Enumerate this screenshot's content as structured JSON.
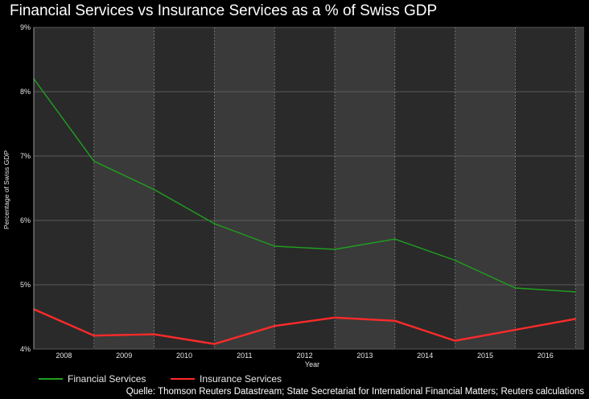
{
  "title": "Financial Services vs Insurance Services as a % of Swiss GDP",
  "source": "Quelle: Thomson Reuters Datastream; State Secretariat for International Financial Matters; Reuters calculations",
  "colors": {
    "background": "#000000",
    "plot_background": "#2a2a2a",
    "band_background": "#3a3a3a",
    "financial": "#1fa01f",
    "insurance": "#ff2a2a"
  },
  "chart_data": {
    "type": "line",
    "xlabel": "Year",
    "ylabel": "Percentage of Swiss GDP",
    "categories": [
      "2008",
      "2009",
      "2010",
      "2011",
      "2012",
      "2013",
      "2014",
      "2015",
      "2016"
    ],
    "y_ticks": [
      "9%",
      "8%",
      "7%",
      "6%",
      "5%",
      "4%"
    ],
    "ylim": [
      4,
      9
    ],
    "grid": true,
    "legend_position": "bottom-left",
    "series": [
      {
        "name": "Financial Services",
        "color": "#1fa01f",
        "points": [
          {
            "x": 2007.5,
            "y": 8.2
          },
          {
            "x": 2008.5,
            "y": 6.92
          },
          {
            "x": 2009.5,
            "y": 6.48
          },
          {
            "x": 2010.5,
            "y": 5.95
          },
          {
            "x": 2011.5,
            "y": 5.6
          },
          {
            "x": 2012.5,
            "y": 5.55
          },
          {
            "x": 2013.5,
            "y": 5.71
          },
          {
            "x": 2014.5,
            "y": 5.38
          },
          {
            "x": 2015.5,
            "y": 4.95
          },
          {
            "x": 2016.5,
            "y": 4.89
          }
        ]
      },
      {
        "name": "Insurance Services",
        "color": "#ff2a2a",
        "points": [
          {
            "x": 2007.5,
            "y": 4.62
          },
          {
            "x": 2008.5,
            "y": 4.21
          },
          {
            "x": 2009.5,
            "y": 4.23
          },
          {
            "x": 2010.5,
            "y": 4.08
          },
          {
            "x": 2011.5,
            "y": 4.36
          },
          {
            "x": 2012.5,
            "y": 4.49
          },
          {
            "x": 2013.5,
            "y": 4.44
          },
          {
            "x": 2014.5,
            "y": 4.13
          },
          {
            "x": 2015.5,
            "y": 4.3
          },
          {
            "x": 2016.5,
            "y": 4.47
          }
        ]
      }
    ]
  }
}
